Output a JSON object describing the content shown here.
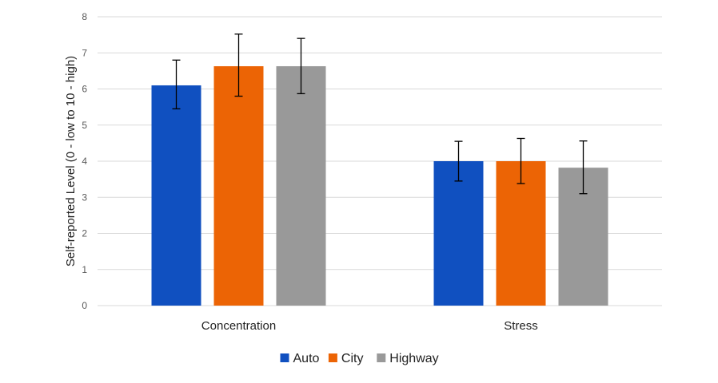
{
  "chart_data": {
    "type": "bar",
    "categories": [
      "Concentration",
      "Stress"
    ],
    "series": [
      {
        "name": "Auto",
        "color": "#1050c0",
        "values": [
          6.1,
          4.0
        ],
        "error": [
          [
            5.45,
            6.8
          ],
          [
            3.45,
            4.55
          ]
        ]
      },
      {
        "name": "City",
        "color": "#ec6405",
        "values": [
          6.63,
          4.0
        ],
        "error": [
          [
            5.8,
            7.52
          ],
          [
            3.38,
            4.63
          ]
        ]
      },
      {
        "name": "Highway",
        "color": "#999999",
        "values": [
          6.63,
          3.82
        ],
        "error": [
          [
            5.87,
            7.4
          ],
          [
            3.1,
            4.56
          ]
        ]
      }
    ],
    "title": "",
    "xlabel": "",
    "ylabel": "Self-reported Level (0 - low to 10 - high)",
    "ylim": [
      0,
      8
    ],
    "yticks": [
      "0",
      "1",
      "2",
      "3",
      "4",
      "5",
      "6",
      "7",
      "8"
    ],
    "grid": true,
    "legend_position": "bottom"
  }
}
